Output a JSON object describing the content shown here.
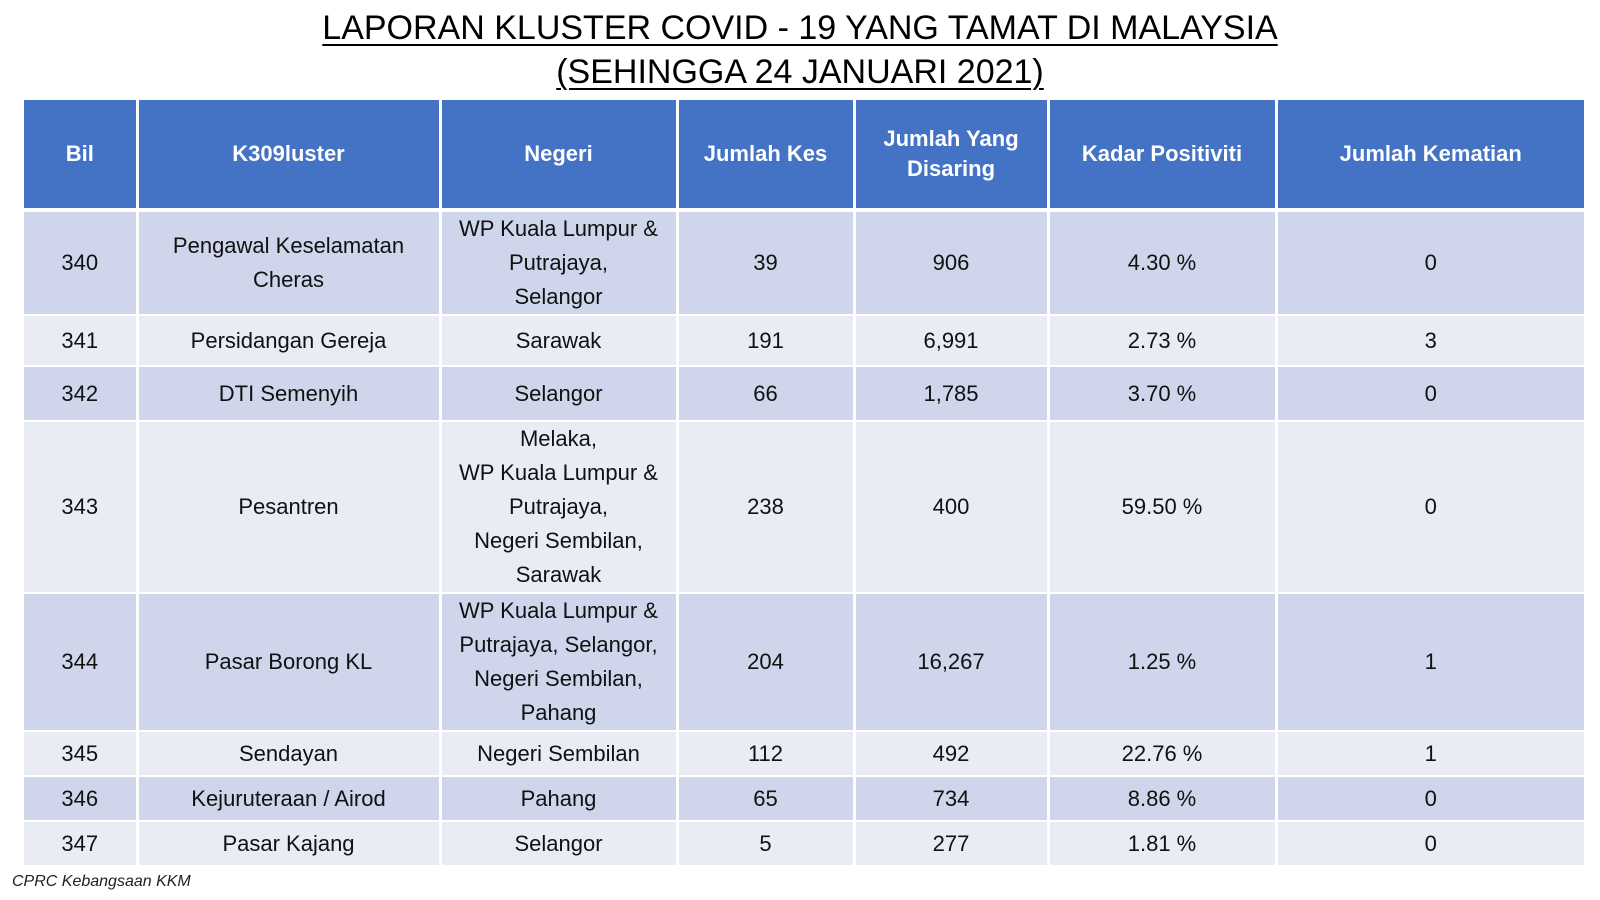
{
  "title": {
    "line1": "LAPORAN KLUSTER COVID - 19 YANG TAMAT DI MALAYSIA",
    "line2": "(SEHINGGA 24 JANUARI 2021)"
  },
  "table": {
    "headers": {
      "bil": "Bil",
      "kluster": "K309luster",
      "negeri": "Negeri",
      "jumlah_kes": "Jumlah Kes",
      "jumlah_disaring": "Jumlah Yang Disaring",
      "kadar_positiviti": "Kadar Positiviti",
      "jumlah_kematian": "Jumlah Kematian"
    },
    "rows": [
      {
        "bil": "340",
        "kluster": "Pengawal Keselamatan Cheras",
        "negeri": "WP Kuala Lumpur &\nPutrajaya,\nSelangor",
        "kes": "39",
        "disaring": "906",
        "positiviti": "4.30 %",
        "kematian": "0"
      },
      {
        "bil": "341",
        "kluster": "Persidangan Gereja",
        "negeri": "Sarawak",
        "kes": "191",
        "disaring": "6,991",
        "positiviti": "2.73 %",
        "kematian": "3"
      },
      {
        "bil": "342",
        "kluster": "DTI Semenyih",
        "negeri": "Selangor",
        "kes": "66",
        "disaring": "1,785",
        "positiviti": "3.70 %",
        "kematian": "0"
      },
      {
        "bil": "343",
        "kluster": "Pesantren",
        "negeri": "Melaka,\nWP Kuala Lumpur &\nPutrajaya,\nNegeri Sembilan,\nSarawak",
        "kes": "238",
        "disaring": "400",
        "positiviti": "59.50 %",
        "kematian": "0"
      },
      {
        "bil": "344",
        "kluster": "Pasar Borong KL",
        "negeri": "WP Kuala Lumpur &\nPutrajaya,  Selangor,\nNegeri Sembilan,\nPahang",
        "kes": "204",
        "disaring": "16,267",
        "positiviti": "1.25 %",
        "kematian": "1"
      },
      {
        "bil": "345",
        "kluster": "Sendayan",
        "negeri": "Negeri Sembilan",
        "kes": "112",
        "disaring": "492",
        "positiviti": "22.76 %",
        "kematian": "1"
      },
      {
        "bil": "346",
        "kluster": "Kejuruteraan / Airod",
        "negeri": "Pahang",
        "kes": "65",
        "disaring": "734",
        "positiviti": "8.86 %",
        "kematian": "0"
      },
      {
        "bil": "347",
        "kluster": "Pasar Kajang",
        "negeri": "Selangor",
        "kes": "5",
        "disaring": "277",
        "positiviti": "1.81 %",
        "kematian": "0"
      }
    ]
  },
  "footer": {
    "source": "CPRC Kebangsaan KKM"
  },
  "colors": {
    "header_bg": "#4472c4",
    "row_dark": "#cfd5ea",
    "row_light": "#e9ebf5"
  }
}
